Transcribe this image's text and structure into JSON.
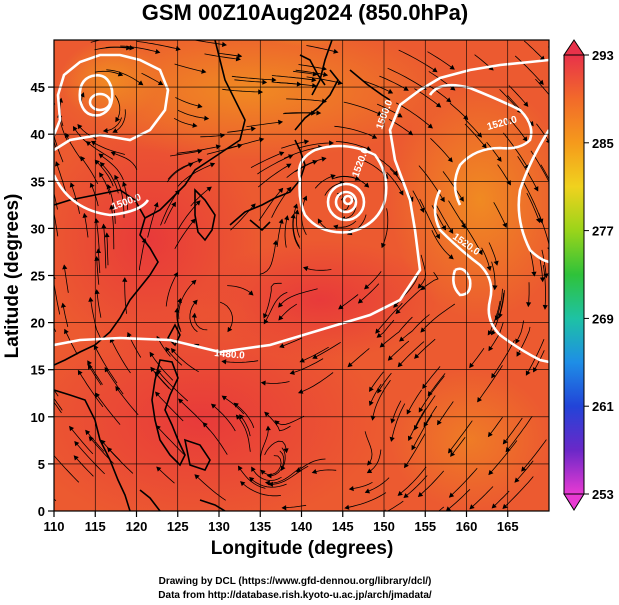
{
  "title": "GSM 00Z10Aug2024 (850.0hPa)",
  "xlabel": "Longitude (degrees)",
  "ylabel": "Latitude  (degrees)",
  "xticks": [
    "110",
    "115",
    "120",
    "125",
    "130",
    "135",
    "140",
    "145",
    "150",
    "155",
    "160",
    "165"
  ],
  "yticks": [
    "0",
    "5",
    "10",
    "15",
    "20",
    "25",
    "30",
    "35",
    "40",
    "45"
  ],
  "colorbar": {
    "ticks": [
      "293",
      "285",
      "277",
      "269",
      "261",
      "253"
    ],
    "colors": [
      "#e8324a",
      "#f26a2a",
      "#f59a1c",
      "#f0d21e",
      "#9ad41a",
      "#2fc23a",
      "#1ec2a4",
      "#1e8ee6",
      "#2244d8",
      "#6a28c8",
      "#c21ec8",
      "#e83ad2"
    ]
  },
  "contour_labels": [
    "1500.0",
    "1520.0",
    "1520.0",
    "1520.0",
    "1500.0",
    "1480.0"
  ],
  "credits": {
    "line1": "Drawing by DCL (https://www.gfd-dennou.org/library/dcl/)",
    "line2": "Data from http://database.rish.kyoto-u.ac.jp/arch/jmadata/"
  },
  "chart_data": {
    "type": "heatmap",
    "title": "GSM 00Z10Aug2024 (850.0hPa)",
    "xlabel": "Longitude (degrees)",
    "ylabel": "Latitude  (degrees)",
    "xlim": [
      110,
      170
    ],
    "ylim": [
      0,
      50
    ],
    "colorbar_range": [
      253,
      293
    ],
    "grid": true
  }
}
